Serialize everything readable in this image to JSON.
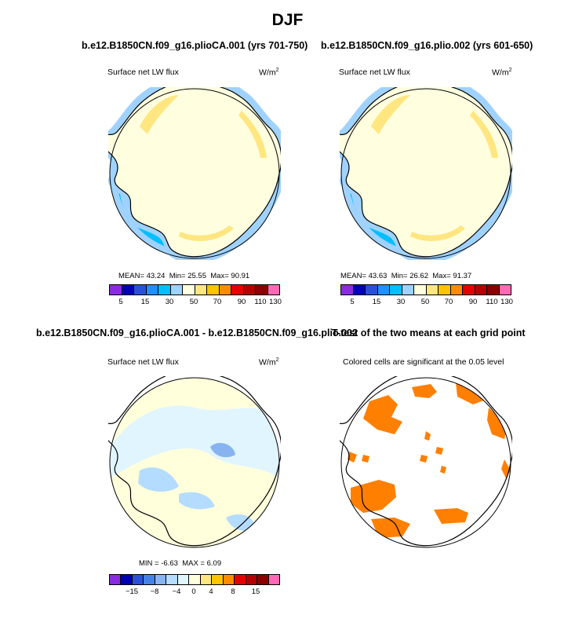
{
  "title": "DJF",
  "panels": [
    {
      "title": "b.e12.B1850CN.f09_g16.plioCA.001 (yrs 701-750)",
      "variable": "Surface net LW flux",
      "units": "W/m",
      "units_sup": "2",
      "stats": {
        "mean_label": "MEAN=",
        "mean": "43.24",
        "min_label": "Min=",
        "min": "25.55",
        "max_label": "Max=",
        "max": "90.91"
      },
      "colorbar_labels": [
        "5",
        "15",
        "30",
        "50",
        "70",
        "90",
        "110",
        "130"
      ]
    },
    {
      "title": "b.e12.B1850CN.f09_g16.plio.002 (yrs 601-650)",
      "variable": "Surface net LW flux",
      "units": "W/m",
      "units_sup": "2",
      "stats": {
        "mean_label": "MEAN=",
        "mean": "43.63",
        "min_label": "Min=",
        "min": "26.62",
        "max_label": "Max=",
        "max": "91.37"
      },
      "colorbar_labels": [
        "5",
        "15",
        "30",
        "50",
        "70",
        "90",
        "110",
        "130"
      ]
    },
    {
      "title": "b.e12.B1850CN.f09_g16.plioCA.001 - b.e12.B1850CN.f09_g16.plio.002",
      "variable": "Surface net LW flux",
      "units": "W/m",
      "units_sup": "2",
      "stats": {
        "min_label": "MIN =",
        "min": "-6.63",
        "max_label": "MAX =",
        "max": "6.09"
      },
      "colorbar_labels": [
        "−15",
        "−8",
        "−4",
        "0",
        "4",
        "8",
        "15"
      ]
    },
    {
      "title": "T-test of the two means at each grid point",
      "subtitle": "Colored cells are significant at the 0.05 level"
    }
  ],
  "colors": {
    "abs_scale": [
      "#8a2be2",
      "#0000b4",
      "#2b50d8",
      "#1e90ff",
      "#00bfff",
      "#a0d2ff",
      "#ffffe0",
      "#ffe680",
      "#ffc400",
      "#ff8c00",
      "#e60000",
      "#b40000",
      "#8b0000",
      "#ff69b4"
    ],
    "diff_scale": [
      "#8a2be2",
      "#0000b4",
      "#2b50d8",
      "#4682e6",
      "#87b4f0",
      "#b4dcff",
      "#e1f5ff",
      "#ffffdc",
      "#ffe680",
      "#ffc400",
      "#ff8c00",
      "#e60000",
      "#b40000",
      "#8b0000",
      "#ff69b4"
    ],
    "ocean": "#00bfff",
    "ocean_far": "#a0d2ff",
    "ice": "#ffffe0",
    "ice_warm": "#ffe680",
    "sig": "#ff7f00"
  }
}
